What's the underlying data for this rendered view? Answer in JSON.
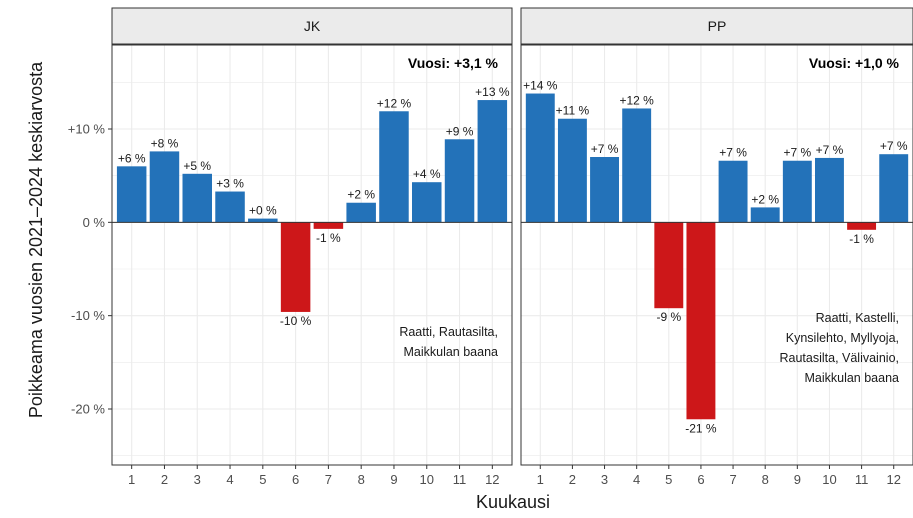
{
  "chart_data": {
    "type": "bar",
    "xlabel": "Kuukausi",
    "ylabel": "Poikkeama vuosien 2021–2024 keskiarvosta",
    "ylim": [
      -26,
      19
    ],
    "yticks": [
      {
        "value": 10,
        "label": "+10 %"
      },
      {
        "value": 0,
        "label": "0 %"
      },
      {
        "value": -10,
        "label": "-10 %"
      },
      {
        "value": -20,
        "label": "-20 %"
      }
    ],
    "categories": [
      "1",
      "2",
      "3",
      "4",
      "5",
      "6",
      "7",
      "8",
      "9",
      "10",
      "11",
      "12"
    ],
    "colors": {
      "positive": "#2372b9",
      "negative": "#cd1719",
      "strip_bg": "#ebebeb",
      "panel_bg": "#ffffff",
      "grid": "#ebebeb"
    },
    "grid": true,
    "panels": [
      {
        "name": "JK",
        "year_label": "Vuosi: +3,1 %",
        "note": [
          "Raatti, Rautasilta,",
          "Maikkulan baana"
        ],
        "values": [
          6,
          7.6,
          5.2,
          3.3,
          0.4,
          -9.6,
          -0.7,
          2.1,
          11.9,
          4.3,
          8.9,
          13.1
        ],
        "labels": [
          "+6 %",
          "+8 %",
          "+5 %",
          "+3 %",
          "+0 %",
          "-10 %",
          "-1 %",
          "+2 %",
          "+12 %",
          "+4 %",
          "+9 %",
          "+13 %"
        ]
      },
      {
        "name": "PP",
        "year_label": "Vuosi: +1,0 %",
        "note": [
          "Raatti, Kastelli,",
          "Kynsilehto, Myllyoja,",
          "Rautasilta, Välivainio,",
          "Maikkulan baana"
        ],
        "values": [
          13.8,
          11.1,
          7,
          12.2,
          -9.2,
          -21.1,
          6.6,
          1.6,
          6.6,
          6.9,
          -0.8,
          7.3
        ],
        "labels": [
          "+14 %",
          "+11 %",
          "+7 %",
          "+12 %",
          "-9 %",
          "-21 %",
          "+7 %",
          "+2 %",
          "+7 %",
          "+7 %",
          "-1 %",
          "+7 %"
        ]
      }
    ]
  }
}
